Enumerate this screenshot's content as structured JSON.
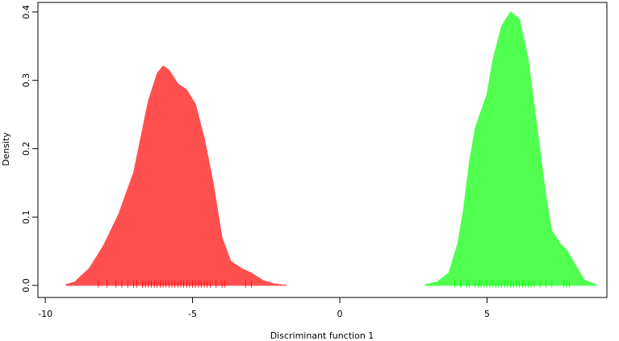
{
  "chart_data": {
    "type": "density",
    "xlabel": "Discriminant function 1",
    "ylabel": "Density",
    "xlim": [
      -10.25,
      9.07
    ],
    "ylim": [
      -0.0177,
      0.414
    ],
    "xticks": [
      -10,
      -5,
      0,
      5
    ],
    "yticks": [
      {
        "value": 0,
        "label": "0.0"
      },
      0.1,
      0.2,
      0.3,
      0.4
    ],
    "series": [
      {
        "color": "#ff5050",
        "rug_color": "#ff0000",
        "x": [
          -9.3,
          -9.0,
          -8.5,
          -8.0,
          -7.5,
          -7.0,
          -6.5,
          -6.2,
          -6.0,
          -5.8,
          -5.5,
          -5.2,
          -4.9,
          -4.6,
          -4.3,
          -4.0,
          -3.7,
          -3.3,
          -3.0,
          -2.6,
          -2.2,
          -1.8
        ],
        "values": [
          0.001,
          0.005,
          0.025,
          0.06,
          0.105,
          0.165,
          0.27,
          0.31,
          0.321,
          0.315,
          0.295,
          0.286,
          0.265,
          0.215,
          0.15,
          0.07,
          0.035,
          0.024,
          0.018,
          0.007,
          0.002,
          0
        ],
        "rug": [
          -8.2,
          -7.9,
          -7.6,
          -7.4,
          -7.2,
          -7.0,
          -6.9,
          -6.7,
          -6.6,
          -6.5,
          -6.4,
          -6.3,
          -6.2,
          -6.1,
          -6.0,
          -5.9,
          -5.8,
          -5.7,
          -5.6,
          -5.5,
          -5.4,
          -5.3,
          -5.2,
          -5.1,
          -5.0,
          -4.9,
          -4.8,
          -4.7,
          -4.6,
          -4.5,
          -4.4,
          -4.2,
          -4.0,
          -3.9,
          -3.2,
          -3.0
        ]
      },
      {
        "color": "#50ff50",
        "rug_color": "#00ff00",
        "x": [
          2.9,
          3.3,
          3.7,
          4.0,
          4.2,
          4.4,
          4.6,
          4.8,
          5.0,
          5.2,
          5.5,
          5.8,
          6.1,
          6.4,
          6.7,
          7.0,
          7.2,
          7.5,
          7.7,
          8.0,
          8.3,
          8.7
        ],
        "values": [
          0.001,
          0.005,
          0.018,
          0.06,
          0.11,
          0.18,
          0.23,
          0.255,
          0.28,
          0.33,
          0.38,
          0.4,
          0.39,
          0.33,
          0.23,
          0.13,
          0.08,
          0.06,
          0.052,
          0.03,
          0.008,
          0.001
        ],
        "rug": [
          3.9,
          4.1,
          4.3,
          4.4,
          4.6,
          4.7,
          4.8,
          4.9,
          5.0,
          5.1,
          5.2,
          5.3,
          5.4,
          5.5,
          5.6,
          5.7,
          5.8,
          5.9,
          6.0,
          6.1,
          6.2,
          6.3,
          6.4,
          6.5,
          6.6,
          6.8,
          7.0,
          7.2,
          7.6,
          7.7,
          7.8
        ]
      }
    ]
  }
}
